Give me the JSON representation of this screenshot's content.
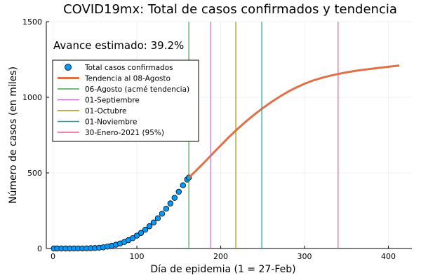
{
  "chart_data": {
    "type": "line",
    "title": "COVID19mx: Total de casos confirmados y tendencia",
    "annotation": "Avance estimado: 39.2%",
    "xlabel": "Día de epidemia (1 = 27-Feb)",
    "ylabel": "Número de casos (en miles)",
    "xlim": [
      -8,
      428
    ],
    "ylim": [
      0,
      1500
    ],
    "xticks": [
      0,
      100,
      200,
      300,
      400
    ],
    "yticks": [
      0,
      500,
      1000,
      1500
    ],
    "grid": true,
    "legend_position": "top-left",
    "colors": {
      "confirmed": "#009AFA",
      "trend": "#E26F46",
      "acme": "#3EA44E",
      "sept": "#C271D2",
      "oct": "#AC8D18",
      "nov": "#00A9AD",
      "ene": "#ED5D92"
    },
    "series": [
      {
        "key": "confirmed",
        "name": "Total casos confirmados",
        "kind": "scatter",
        "x": [
          1,
          5,
          10,
          15,
          20,
          25,
          30,
          35,
          40,
          45,
          50,
          55,
          60,
          65,
          70,
          75,
          80,
          85,
          90,
          95,
          100,
          105,
          110,
          115,
          120,
          125,
          130,
          135,
          140,
          145,
          150,
          155,
          160,
          162
        ],
        "y": [
          0.0,
          0.0,
          0.0,
          0.0,
          0.0,
          0.1,
          0.2,
          0.5,
          1.0,
          1.8,
          3.0,
          5.0,
          8.0,
          12.5,
          18.0,
          25.0,
          33.0,
          43.0,
          55.0,
          68.0,
          85.0,
          103.0,
          124.0,
          147.0,
          172.0,
          200.0,
          230.0,
          263.0,
          298.0,
          335.0,
          375.0,
          418.0,
          456.0,
          469.0
        ]
      },
      {
        "key": "trend",
        "name": "Tendencia al 08-Agosto",
        "kind": "line",
        "x": [
          162,
          170,
          180,
          190,
          200,
          210,
          220,
          230,
          240,
          250,
          260,
          270,
          280,
          290,
          300,
          310,
          320,
          330,
          340,
          350,
          360,
          370,
          380,
          390,
          400,
          413
        ],
        "y": [
          469,
          512,
          567,
          625,
          682,
          738,
          790,
          840,
          885,
          928,
          967,
          1003,
          1036,
          1065,
          1090,
          1111,
          1128,
          1142,
          1154,
          1165,
          1174,
          1182,
          1189,
          1196,
          1202,
          1210
        ]
      },
      {
        "key": "acme",
        "name": "06-Agosto (acmé tendencia)",
        "kind": "vline",
        "x": 162
      },
      {
        "key": "sept",
        "name": "01-Septiembre",
        "kind": "vline",
        "x": 188
      },
      {
        "key": "oct",
        "name": "01-Octubre",
        "kind": "vline",
        "x": 218
      },
      {
        "key": "nov",
        "name": "01-Noviembre",
        "kind": "vline",
        "x": 249
      },
      {
        "key": "ene",
        "name": "30-Enero-2021 (95%)",
        "kind": "vline",
        "x": 340
      }
    ]
  }
}
